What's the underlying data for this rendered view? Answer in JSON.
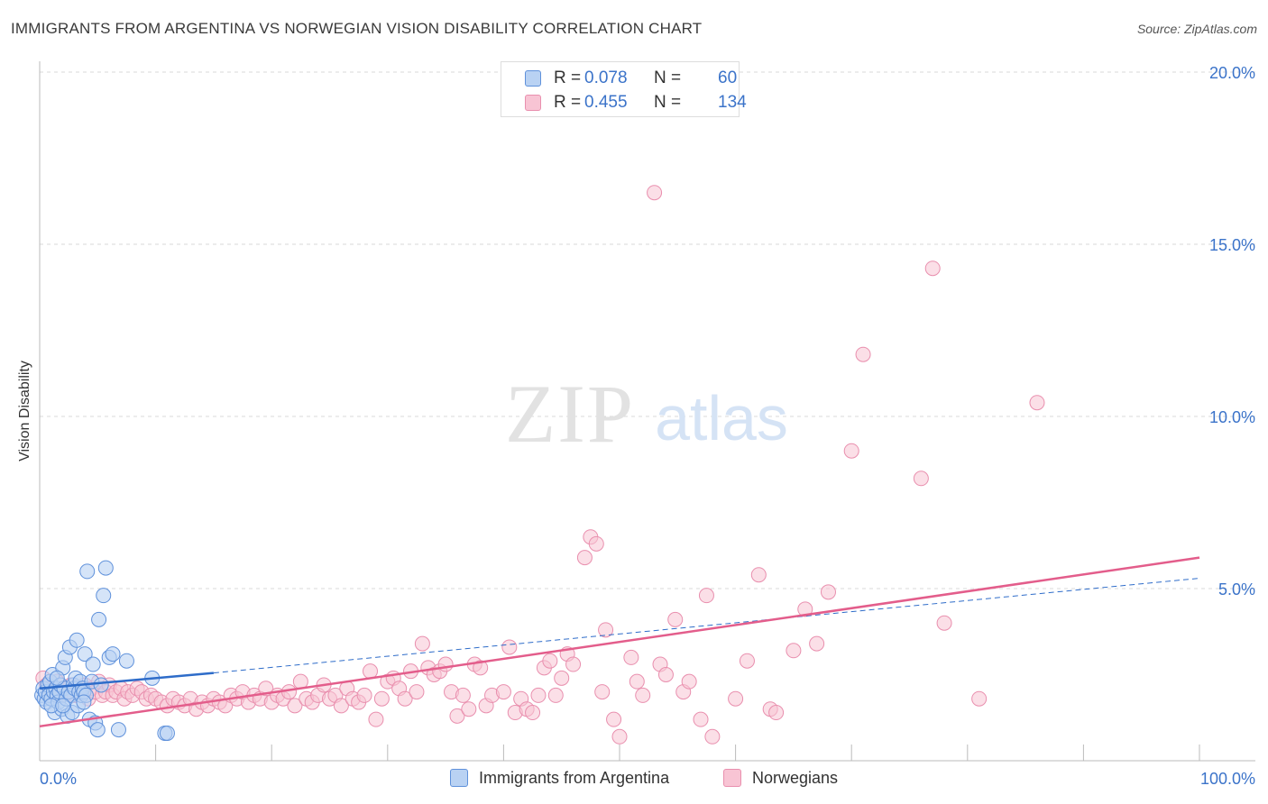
{
  "title": "IMMIGRANTS FROM ARGENTINA VS NORWEGIAN VISION DISABILITY CORRELATION CHART",
  "source": "Source: ZipAtlas.com",
  "watermark": {
    "zip": "ZIP",
    "atlas": "atlas"
  },
  "legend": {
    "argentina": {
      "r_label": "R =",
      "r_value": "0.078",
      "n_label": "N =",
      "n_value": "60"
    },
    "norwegians": {
      "r_label": "R =",
      "r_value": "0.455",
      "n_label": "N =",
      "n_value": "134"
    }
  },
  "colors": {
    "argentina_fill": "#b9d2f3",
    "argentina_stroke": "#5f91db",
    "argentina_line": "#2e6cc9",
    "norwegians_fill": "#f8c4d4",
    "norwegians_stroke": "#e98fae",
    "norwegians_line": "#e35d8b",
    "tick_label": "#3b73c9",
    "grid": "#d9d9d9"
  },
  "chart_data": {
    "type": "scatter",
    "xlabel": "",
    "ylabel": "Vision Disability",
    "xlim": [
      0,
      100
    ],
    "ylim": [
      0,
      20
    ],
    "x_tick_labels": [
      "0.0%",
      "100.0%"
    ],
    "y_ticks": [
      5,
      10,
      15,
      20
    ],
    "y_tick_labels": [
      "5.0%",
      "10.0%",
      "15.0%",
      "20.0%"
    ],
    "grid": "horizontal dashed",
    "legend_position": "top-center and bottom",
    "series": [
      {
        "name": "Immigrants from Argentina",
        "points": [
          [
            0.2,
            1.9
          ],
          [
            0.3,
            2.1
          ],
          [
            0.4,
            1.8
          ],
          [
            0.5,
            2.0
          ],
          [
            0.6,
            1.7
          ],
          [
            0.7,
            2.2
          ],
          [
            0.8,
            1.9
          ],
          [
            0.9,
            2.3
          ],
          [
            1.0,
            1.8
          ],
          [
            1.1,
            2.5
          ],
          [
            1.2,
            2.0
          ],
          [
            1.3,
            1.4
          ],
          [
            1.4,
            2.1
          ],
          [
            1.5,
            1.9
          ],
          [
            1.6,
            1.7
          ],
          [
            1.7,
            2.0
          ],
          [
            1.8,
            2.2
          ],
          [
            1.9,
            1.5
          ],
          [
            2.0,
            2.7
          ],
          [
            2.1,
            2.1
          ],
          [
            2.2,
            3.0
          ],
          [
            2.3,
            1.8
          ],
          [
            2.4,
            1.3
          ],
          [
            2.5,
            2.0
          ],
          [
            2.6,
            3.3
          ],
          [
            2.7,
            1.9
          ],
          [
            2.8,
            1.4
          ],
          [
            2.9,
            2.2
          ],
          [
            3.0,
            2.1
          ],
          [
            3.1,
            2.4
          ],
          [
            3.2,
            3.5
          ],
          [
            3.3,
            1.6
          ],
          [
            3.4,
            2.0
          ],
          [
            3.5,
            2.3
          ],
          [
            3.6,
            1.9
          ],
          [
            3.7,
            2.1
          ],
          [
            3.8,
            2.0
          ],
          [
            3.9,
            3.1
          ],
          [
            4.0,
            1.9
          ],
          [
            4.1,
            5.5
          ],
          [
            4.3,
            1.2
          ],
          [
            4.5,
            2.3
          ],
          [
            4.6,
            2.8
          ],
          [
            4.8,
            1.1
          ],
          [
            5.0,
            0.9
          ],
          [
            5.1,
            4.1
          ],
          [
            5.3,
            2.2
          ],
          [
            5.5,
            4.8
          ],
          [
            5.7,
            5.6
          ],
          [
            6.0,
            3.0
          ],
          [
            6.3,
            3.1
          ],
          [
            6.8,
            0.9
          ],
          [
            7.5,
            2.9
          ],
          [
            9.7,
            2.4
          ],
          [
            10.8,
            0.8
          ],
          [
            11.0,
            0.8
          ],
          [
            1.0,
            1.6
          ],
          [
            1.5,
            2.4
          ],
          [
            2.0,
            1.6
          ],
          [
            3.8,
            1.7
          ]
        ],
        "trend": {
          "x": [
            0,
            15
          ],
          "y": [
            2.1,
            2.55
          ]
        },
        "trend_extended": {
          "x": [
            15,
            100
          ],
          "y": [
            2.55,
            5.3
          ]
        }
      },
      {
        "name": "Norwegians",
        "points": [
          [
            0.3,
            2.4
          ],
          [
            0.6,
            2.2
          ],
          [
            0.9,
            2.1
          ],
          [
            1.2,
            2.0
          ],
          [
            1.5,
            2.3
          ],
          [
            1.8,
            1.9
          ],
          [
            2.1,
            2.1
          ],
          [
            2.4,
            2.0
          ],
          [
            2.7,
            2.2
          ],
          [
            3.0,
            1.9
          ],
          [
            3.3,
            2.1
          ],
          [
            3.6,
            2.0
          ],
          [
            3.9,
            2.2
          ],
          [
            4.2,
            1.8
          ],
          [
            4.5,
            2.1
          ],
          [
            4.8,
            2.0
          ],
          [
            5.1,
            2.3
          ],
          [
            5.4,
            1.9
          ],
          [
            5.7,
            2.0
          ],
          [
            6.0,
            2.2
          ],
          [
            6.3,
            1.9
          ],
          [
            6.6,
            2.0
          ],
          [
            7.0,
            2.1
          ],
          [
            7.3,
            1.8
          ],
          [
            7.6,
            2.0
          ],
          [
            8.0,
            1.9
          ],
          [
            8.4,
            2.1
          ],
          [
            8.8,
            2.0
          ],
          [
            9.2,
            1.8
          ],
          [
            9.6,
            1.9
          ],
          [
            10.0,
            1.8
          ],
          [
            10.5,
            1.7
          ],
          [
            11.0,
            1.6
          ],
          [
            11.5,
            1.8
          ],
          [
            12.0,
            1.7
          ],
          [
            12.5,
            1.6
          ],
          [
            13.0,
            1.8
          ],
          [
            13.5,
            1.5
          ],
          [
            14.0,
            1.7
          ],
          [
            14.5,
            1.6
          ],
          [
            15.0,
            1.8
          ],
          [
            15.5,
            1.7
          ],
          [
            16.0,
            1.6
          ],
          [
            16.5,
            1.9
          ],
          [
            17.0,
            1.8
          ],
          [
            17.5,
            2.0
          ],
          [
            18.0,
            1.7
          ],
          [
            18.5,
            1.9
          ],
          [
            19.0,
            1.8
          ],
          [
            19.5,
            2.1
          ],
          [
            20.0,
            1.7
          ],
          [
            20.5,
            1.9
          ],
          [
            21.0,
            1.8
          ],
          [
            21.5,
            2.0
          ],
          [
            22.0,
            1.6
          ],
          [
            22.5,
            2.3
          ],
          [
            23.0,
            1.8
          ],
          [
            23.5,
            1.7
          ],
          [
            24.0,
            1.9
          ],
          [
            24.5,
            2.2
          ],
          [
            25.0,
            1.8
          ],
          [
            25.5,
            1.9
          ],
          [
            26.0,
            1.6
          ],
          [
            26.5,
            2.1
          ],
          [
            27.0,
            1.8
          ],
          [
            27.5,
            1.7
          ],
          [
            28.0,
            1.9
          ],
          [
            28.5,
            2.6
          ],
          [
            29.0,
            1.2
          ],
          [
            29.5,
            1.8
          ],
          [
            30.0,
            2.3
          ],
          [
            30.5,
            2.4
          ],
          [
            31.0,
            2.1
          ],
          [
            31.5,
            1.8
          ],
          [
            32.0,
            2.6
          ],
          [
            32.5,
            2.0
          ],
          [
            33.0,
            3.4
          ],
          [
            33.5,
            2.7
          ],
          [
            34.0,
            2.5
          ],
          [
            34.5,
            2.6
          ],
          [
            35.0,
            2.8
          ],
          [
            35.5,
            2.0
          ],
          [
            36.0,
            1.3
          ],
          [
            36.5,
            1.9
          ],
          [
            37.0,
            1.5
          ],
          [
            37.5,
            2.8
          ],
          [
            38.0,
            2.7
          ],
          [
            38.5,
            1.6
          ],
          [
            39.0,
            1.9
          ],
          [
            40.0,
            2.0
          ],
          [
            40.5,
            3.3
          ],
          [
            41.0,
            1.4
          ],
          [
            41.5,
            1.8
          ],
          [
            42.0,
            1.5
          ],
          [
            42.5,
            1.4
          ],
          [
            43.0,
            1.9
          ],
          [
            43.5,
            2.7
          ],
          [
            44.0,
            2.9
          ],
          [
            44.5,
            1.9
          ],
          [
            45.0,
            2.4
          ],
          [
            45.5,
            3.1
          ],
          [
            46.0,
            2.8
          ],
          [
            47.0,
            5.9
          ],
          [
            47.5,
            6.5
          ],
          [
            48.0,
            6.3
          ],
          [
            48.5,
            2.0
          ],
          [
            48.8,
            3.8
          ],
          [
            49.5,
            1.2
          ],
          [
            50.0,
            0.7
          ],
          [
            51.0,
            3.0
          ],
          [
            51.5,
            2.3
          ],
          [
            52.0,
            1.9
          ],
          [
            53.0,
            16.5
          ],
          [
            53.5,
            2.8
          ],
          [
            54.0,
            2.5
          ],
          [
            54.8,
            4.1
          ],
          [
            55.5,
            2.0
          ],
          [
            56.0,
            2.3
          ],
          [
            57.0,
            1.2
          ],
          [
            57.5,
            4.8
          ],
          [
            58.0,
            0.7
          ],
          [
            60.0,
            1.8
          ],
          [
            61.0,
            2.9
          ],
          [
            62.0,
            5.4
          ],
          [
            63.0,
            1.5
          ],
          [
            63.5,
            1.4
          ],
          [
            65.0,
            3.2
          ],
          [
            66.0,
            4.4
          ],
          [
            67.0,
            3.4
          ],
          [
            68.0,
            4.9
          ],
          [
            70.0,
            9.0
          ],
          [
            71.0,
            11.8
          ],
          [
            76.0,
            8.2
          ],
          [
            77.0,
            14.3
          ],
          [
            78.0,
            4.0
          ],
          [
            81.0,
            1.8
          ],
          [
            86.0,
            10.4
          ]
        ],
        "trend": {
          "x": [
            0,
            100
          ],
          "y": [
            1.0,
            5.9
          ]
        }
      }
    ]
  }
}
